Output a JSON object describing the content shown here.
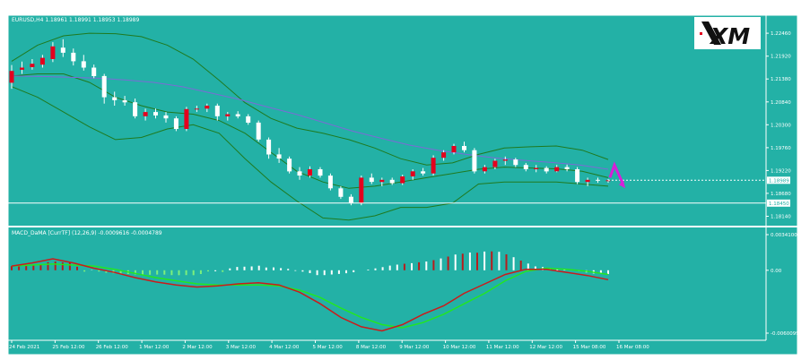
{
  "app": {
    "symbol_header": "EURUSD,H4  1.18961 1.18991 1.18953 1.18989",
    "logo_text": "XM",
    "indicator_header": "MACD_DaMA [CurrTF] (12,26,9) -0.0009616 -0.0004789"
  },
  "colors": {
    "background": "#23B1A6",
    "frame": "#ffffff",
    "bull_candle": "#E4001E",
    "bear_candle": "#ffffff",
    "bollinger": "#1F7A1F",
    "moving_average": "#7B6BD6",
    "price_line": "#ffffff",
    "signal_arrow": "#D81FD8",
    "macd_line": "#CC1A1A",
    "signal_line": "#22E622",
    "hist_red": "#B81C1C",
    "hist_white": "#ffffff",
    "hist_green": "#7CF07C"
  },
  "price_axis": {
    "labels": [
      "1.22460",
      "1.21920",
      "1.21380",
      "1.20840",
      "1.20300",
      "1.19760",
      "1.19220",
      "1.18680",
      "1.18140"
    ],
    "current_price": "1.18989",
    "ref_price": "1.18450",
    "min": 1.1796,
    "max": 1.2278
  },
  "macd_axis": {
    "labels": [
      "0.0034100",
      "0.00",
      "-0.0060099"
    ],
    "max": 0.00341,
    "min": -0.0060099
  },
  "time_axis": {
    "labels": [
      "24 Feb 2021",
      "25 Feb 12:00",
      "26 Feb 12:00",
      "1 Mar 12:00",
      "2 Mar 12:00",
      "3 Mar 12:00",
      "4 Mar 12:00",
      "5 Mar 12:00",
      "8 Mar 12:00",
      "9 Mar 12:00",
      "10 Mar 12:00",
      "11 Mar 12:00",
      "12 Mar 12:00",
      "15 Mar 08:00",
      "16 Mar 08:00"
    ]
  },
  "chart_data": {
    "type": "candlestick",
    "candles": [
      [
        1.2129,
        1.2171,
        1.2115,
        1.2157
      ],
      [
        1.216,
        1.2179,
        1.215,
        1.2165
      ],
      [
        1.2166,
        1.2185,
        1.216,
        1.2174
      ],
      [
        1.2172,
        1.2195,
        1.2165,
        1.2188
      ],
      [
        1.2185,
        1.2225,
        1.2178,
        1.2215
      ],
      [
        1.2212,
        1.2232,
        1.219,
        1.22
      ],
      [
        1.22,
        1.221,
        1.217,
        1.218
      ],
      [
        1.218,
        1.2195,
        1.2158,
        1.2165
      ],
      [
        1.2165,
        1.2172,
        1.214,
        1.2145
      ],
      [
        1.2145,
        1.215,
        1.208,
        1.2095
      ],
      [
        1.2095,
        1.2108,
        1.2075,
        1.2088
      ],
      [
        1.2088,
        1.2098,
        1.2075,
        1.2083
      ],
      [
        1.2083,
        1.2092,
        1.2045,
        1.205
      ],
      [
        1.205,
        1.2068,
        1.204,
        1.206
      ],
      [
        1.206,
        1.2068,
        1.2045,
        1.2052
      ],
      [
        1.2052,
        1.206,
        1.2035,
        1.2045
      ],
      [
        1.2045,
        1.205,
        1.2015,
        1.202
      ],
      [
        1.202,
        1.2072,
        1.2015,
        1.2067
      ],
      [
        1.2067,
        1.2075,
        1.206,
        1.2068
      ],
      [
        1.2068,
        1.208,
        1.206,
        1.2075
      ],
      [
        1.2075,
        1.208,
        1.204,
        1.205
      ],
      [
        1.205,
        1.206,
        1.204,
        1.2055
      ],
      [
        1.2055,
        1.2062,
        1.2045,
        1.205
      ],
      [
        1.205,
        1.2055,
        1.203,
        1.2035
      ],
      [
        1.2035,
        1.204,
        1.199,
        1.1995
      ],
      [
        1.1995,
        1.2,
        1.195,
        1.196
      ],
      [
        1.196,
        1.1975,
        1.194,
        1.195
      ],
      [
        1.195,
        1.1955,
        1.1915,
        1.192
      ],
      [
        1.192,
        1.193,
        1.19,
        1.191
      ],
      [
        1.191,
        1.1932,
        1.1905,
        1.1925
      ],
      [
        1.1925,
        1.193,
        1.1905,
        1.191
      ],
      [
        1.191,
        1.1915,
        1.1875,
        1.188
      ],
      [
        1.188,
        1.1885,
        1.1855,
        1.186
      ],
      [
        1.186,
        1.1866,
        1.184,
        1.1845
      ],
      [
        1.1845,
        1.191,
        1.184,
        1.1905
      ],
      [
        1.1905,
        1.1915,
        1.189,
        1.1895
      ],
      [
        1.1895,
        1.1905,
        1.1885,
        1.19
      ],
      [
        1.19,
        1.1905,
        1.1888,
        1.1892
      ],
      [
        1.1892,
        1.1912,
        1.1888,
        1.1908
      ],
      [
        1.1908,
        1.1925,
        1.19,
        1.192
      ],
      [
        1.192,
        1.1928,
        1.191,
        1.1915
      ],
      [
        1.1915,
        1.1958,
        1.191,
        1.1952
      ],
      [
        1.1952,
        1.197,
        1.1945,
        1.1965
      ],
      [
        1.1965,
        1.1985,
        1.196,
        1.198
      ],
      [
        1.198,
        1.199,
        1.1965,
        1.197
      ],
      [
        1.197,
        1.1975,
        1.1915,
        1.192
      ],
      [
        1.192,
        1.1935,
        1.1915,
        1.193
      ],
      [
        1.193,
        1.195,
        1.1925,
        1.1945
      ],
      [
        1.1945,
        1.1955,
        1.1935,
        1.1948
      ],
      [
        1.1948,
        1.1952,
        1.193,
        1.1935
      ],
      [
        1.1935,
        1.194,
        1.192,
        1.1925
      ],
      [
        1.1925,
        1.1935,
        1.1918,
        1.1928
      ],
      [
        1.1928,
        1.1932,
        1.1915,
        1.192
      ],
      [
        1.192,
        1.1935,
        1.1918,
        1.193
      ],
      [
        1.193,
        1.1936,
        1.192,
        1.1925
      ],
      [
        1.1925,
        1.193,
        1.189,
        1.1895
      ],
      [
        1.1895,
        1.1905,
        1.1885,
        1.19
      ],
      [
        1.19,
        1.1905,
        1.1893,
        1.1898
      ],
      [
        1.1898,
        1.1902,
        1.1893,
        1.1899
      ]
    ],
    "bollinger_upper": [
      1.218,
      1.2218,
      1.224,
      1.2246,
      1.2245,
      1.2238,
      1.2218,
      1.2185,
      1.2135,
      1.2082,
      1.2045,
      1.2022,
      1.201,
      1.1995,
      1.1975,
      1.195,
      1.1935,
      1.194,
      1.196,
      1.1975,
      1.1978,
      1.198,
      1.197,
      1.1948
    ],
    "bollinger_middle": [
      1.2145,
      1.215,
      1.215,
      1.213,
      1.2095,
      1.2075,
      1.206,
      1.2055,
      1.204,
      1.201,
      1.1965,
      1.192,
      1.1895,
      1.188,
      1.1885,
      1.1895,
      1.1905,
      1.1915,
      1.1925,
      1.193,
      1.1928,
      1.1926,
      1.192,
      1.1905
    ],
    "bollinger_lower": [
      1.212,
      1.2095,
      1.206,
      1.2025,
      1.1995,
      1.2,
      1.202,
      1.203,
      1.201,
      1.195,
      1.1895,
      1.185,
      1.181,
      1.1805,
      1.1815,
      1.1835,
      1.1835,
      1.1845,
      1.189,
      1.1895,
      1.1895,
      1.1895,
      1.189,
      1.1885
    ],
    "moving_average": [
      1.2145,
      1.2144,
      1.2142,
      1.214,
      1.2136,
      1.213,
      1.212,
      1.2105,
      1.209,
      1.2072,
      1.2055,
      1.2035,
      1.2015,
      1.1998,
      1.1982,
      1.197,
      1.196,
      1.1952,
      1.1946,
      1.1941,
      1.1935,
      1.1925
    ],
    "macd_hist": [
      0.0004,
      0.00047,
      0.00045,
      0.00046,
      0.00054,
      0.00078,
      0.00084,
      0.00076,
      0.00075,
      0.00034,
      -0.00013,
      3e-05,
      -0.00012,
      -0.00023,
      -0.00029,
      -0.00035,
      -0.00036,
      -0.0004,
      -0.00048,
      -0.00043,
      -0.00041,
      -0.00042,
      -0.00046,
      -0.00047,
      -0.00046,
      -0.00047,
      -0.00036,
      -0.00011,
      -9e-05,
      -0.00016,
      0.00018,
      0.00032,
      0.00034,
      0.00037,
      0.00044,
      0.00027,
      0.00028,
      0.00021,
      0.00014,
      -6e-05,
      -0.00013,
      -0.00027,
      -0.00046,
      -0.00046,
      -0.0004,
      -0.00035,
      -0.00028,
      -0.00019,
      0.0,
      7e-05,
      0.00018,
      0.0003,
      0.00045,
      0.00054,
      0.00063,
      0.00068,
      0.00076,
      0.00084,
      0.00097,
      0.00113,
      0.00131,
      0.00151,
      0.00159,
      0.0017,
      0.00168,
      0.00179,
      0.00181,
      0.00177,
      0.00153,
      0.00125,
      0.00093,
      0.00064,
      0.00037,
      0.00031,
      0.00017,
      0.00013,
      8e-05,
      3e-05,
      -8e-05,
      -0.0002,
      -0.00031,
      -0.00035,
      -0.00036
    ],
    "macd_line": [
      0.0004,
      0.0007,
      0.0011,
      0.0007,
      0.0002,
      -0.0002,
      -0.0007,
      -0.0011,
      -0.0014,
      -0.0016,
      -0.0015,
      -0.0013,
      -0.0012,
      -0.0014,
      -0.0021,
      -0.0032,
      -0.0045,
      -0.0054,
      -0.0058,
      -0.0052,
      -0.0042,
      -0.0034,
      -0.0022,
      -0.0013,
      -0.0004,
      0.0001,
      0.0001,
      -0.0002,
      -0.0005,
      -0.0009
    ],
    "signal_line": [
      0.0004,
      0.0005,
      0.0006,
      0.0005,
      0.0004,
      0.0001,
      -0.0003,
      -0.0007,
      -0.001,
      -0.0013,
      -0.0014,
      -0.0014,
      -0.0014,
      -0.0015,
      -0.0019,
      -0.0026,
      -0.0036,
      -0.0045,
      -0.0052,
      -0.0055,
      -0.005,
      -0.0042,
      -0.0032,
      -0.0022,
      -0.001,
      -0.0001,
      0.0002,
      0.0001,
      -0.0001,
      -0.0004
    ]
  }
}
